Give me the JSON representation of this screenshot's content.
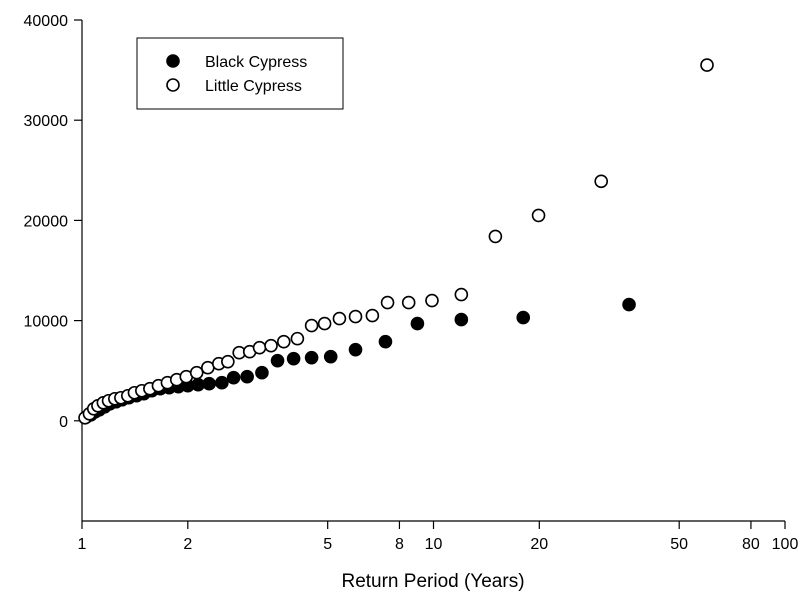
{
  "chart_data": {
    "type": "scatter",
    "title": "",
    "xlabel": "Return Period (Years)",
    "ylabel": "",
    "x_scale": "log",
    "xlim": [
      1,
      100
    ],
    "ylim": [
      -10000,
      40000
    ],
    "x_ticks": [
      1,
      2,
      5,
      8,
      10,
      20,
      50,
      80,
      100
    ],
    "y_ticks": [
      0,
      10000,
      20000,
      30000,
      40000
    ],
    "grid": false,
    "legend_position": "top-left",
    "series": [
      {
        "name": "Black Cypress",
        "marker": "filled-circle",
        "color": "#000000",
        "points": [
          {
            "x": 1.03,
            "y": 400
          },
          {
            "x": 1.06,
            "y": 600
          },
          {
            "x": 1.09,
            "y": 900
          },
          {
            "x": 1.12,
            "y": 1100
          },
          {
            "x": 1.16,
            "y": 1400
          },
          {
            "x": 1.2,
            "y": 1700
          },
          {
            "x": 1.25,
            "y": 1900
          },
          {
            "x": 1.3,
            "y": 2100
          },
          {
            "x": 1.36,
            "y": 2300
          },
          {
            "x": 1.43,
            "y": 2500
          },
          {
            "x": 1.5,
            "y": 2700
          },
          {
            "x": 1.58,
            "y": 3000
          },
          {
            "x": 1.67,
            "y": 3200
          },
          {
            "x": 1.77,
            "y": 3300
          },
          {
            "x": 1.88,
            "y": 3400
          },
          {
            "x": 2.0,
            "y": 3500
          },
          {
            "x": 2.14,
            "y": 3600
          },
          {
            "x": 2.3,
            "y": 3700
          },
          {
            "x": 2.5,
            "y": 3800
          },
          {
            "x": 2.7,
            "y": 4300
          },
          {
            "x": 2.95,
            "y": 4400
          },
          {
            "x": 3.25,
            "y": 4800
          },
          {
            "x": 3.6,
            "y": 6000
          },
          {
            "x": 4.0,
            "y": 6200
          },
          {
            "x": 4.5,
            "y": 6300
          },
          {
            "x": 5.1,
            "y": 6400
          },
          {
            "x": 6.0,
            "y": 7100
          },
          {
            "x": 7.3,
            "y": 7900
          },
          {
            "x": 9.0,
            "y": 9700
          },
          {
            "x": 12.0,
            "y": 10100
          },
          {
            "x": 18.0,
            "y": 10300
          },
          {
            "x": 36.0,
            "y": 11600
          }
        ]
      },
      {
        "name": "Little Cypress",
        "marker": "open-circle",
        "color": "#000000",
        "points": [
          {
            "x": 1.02,
            "y": 300
          },
          {
            "x": 1.05,
            "y": 700
          },
          {
            "x": 1.08,
            "y": 1200
          },
          {
            "x": 1.11,
            "y": 1500
          },
          {
            "x": 1.15,
            "y": 1800
          },
          {
            "x": 1.19,
            "y": 2000
          },
          {
            "x": 1.24,
            "y": 2200
          },
          {
            "x": 1.29,
            "y": 2300
          },
          {
            "x": 1.35,
            "y": 2500
          },
          {
            "x": 1.41,
            "y": 2800
          },
          {
            "x": 1.48,
            "y": 3000
          },
          {
            "x": 1.56,
            "y": 3200
          },
          {
            "x": 1.65,
            "y": 3500
          },
          {
            "x": 1.75,
            "y": 3800
          },
          {
            "x": 1.86,
            "y": 4100
          },
          {
            "x": 1.98,
            "y": 4400
          },
          {
            "x": 2.12,
            "y": 4800
          },
          {
            "x": 2.28,
            "y": 5300
          },
          {
            "x": 2.45,
            "y": 5700
          },
          {
            "x": 2.6,
            "y": 5900
          },
          {
            "x": 2.8,
            "y": 6800
          },
          {
            "x": 3.0,
            "y": 6900
          },
          {
            "x": 3.2,
            "y": 7300
          },
          {
            "x": 3.45,
            "y": 7500
          },
          {
            "x": 3.75,
            "y": 7900
          },
          {
            "x": 4.1,
            "y": 8200
          },
          {
            "x": 4.5,
            "y": 9500
          },
          {
            "x": 4.9,
            "y": 9700
          },
          {
            "x": 5.4,
            "y": 10200
          },
          {
            "x": 6.0,
            "y": 10400
          },
          {
            "x": 6.7,
            "y": 10500
          },
          {
            "x": 7.4,
            "y": 11800
          },
          {
            "x": 8.5,
            "y": 11800
          },
          {
            "x": 9.9,
            "y": 12000
          },
          {
            "x": 12.0,
            "y": 12600
          },
          {
            "x": 15.0,
            "y": 18400
          },
          {
            "x": 19.9,
            "y": 20500
          },
          {
            "x": 30.0,
            "y": 23900
          },
          {
            "x": 60.0,
            "y": 35500
          }
        ]
      }
    ]
  }
}
